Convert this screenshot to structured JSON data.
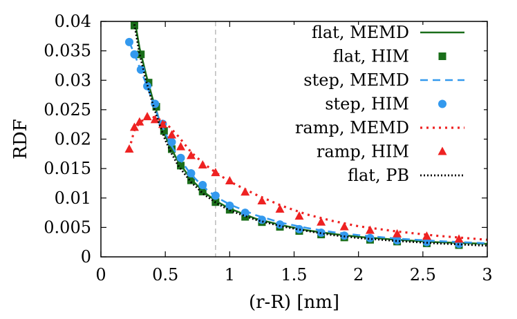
{
  "chart_data": {
    "type": "line",
    "xlabel": "(r-R) [nm]",
    "ylabel": "RDF",
    "xlim": [
      0,
      3
    ],
    "ylim": [
      0,
      0.04
    ],
    "xticks": [
      0,
      0.5,
      1,
      1.5,
      2,
      2.5,
      3
    ],
    "xtick_labels": [
      "0",
      "0.5",
      "1",
      "1.5",
      "2",
      "2.5",
      "3"
    ],
    "yticks": [
      0,
      0.005,
      0.01,
      0.015,
      0.02,
      0.025,
      0.03,
      0.035,
      0.04
    ],
    "ytick_labels": [
      "0",
      "0.005",
      "0.01",
      "0.015",
      "0.02",
      "0.025",
      "0.03",
      "0.035",
      "0.04"
    ],
    "grid": false,
    "legend_position": "top-right",
    "reference_line": {
      "x": 0.89,
      "style": "dashed",
      "color": "#bbbbbb"
    },
    "series": [
      {
        "name": "flat, MEMD",
        "kind": "line",
        "style": "solid",
        "color": "#1a6e1a",
        "x": [
          0.26,
          0.3,
          0.35,
          0.4,
          0.45,
          0.5,
          0.55,
          0.6,
          0.7,
          0.8,
          0.9,
          1.0,
          1.2,
          1.4,
          1.6,
          1.8,
          2.0,
          2.3,
          2.6,
          3.0
        ],
        "y": [
          0.0405,
          0.0355,
          0.031,
          0.027,
          0.0235,
          0.0205,
          0.0182,
          0.0162,
          0.0132,
          0.011,
          0.0094,
          0.0082,
          0.0065,
          0.0054,
          0.0045,
          0.0039,
          0.0034,
          0.0029,
          0.0025,
          0.0022
        ]
      },
      {
        "name": "flat, HIM",
        "kind": "markers",
        "marker": "square",
        "color": "#1a6e1a",
        "x": [
          0.26,
          0.31,
          0.37,
          0.43,
          0.49,
          0.55,
          0.62,
          0.7,
          0.79,
          0.89,
          1.0,
          1.12,
          1.25,
          1.39,
          1.54,
          1.71,
          1.89,
          2.09,
          2.3,
          2.53,
          2.78
        ],
        "y": [
          0.0393,
          0.0344,
          0.0296,
          0.0255,
          0.0214,
          0.0183,
          0.0155,
          0.013,
          0.0111,
          0.0093,
          0.008,
          0.0068,
          0.0059,
          0.0051,
          0.0044,
          0.0038,
          0.0033,
          0.0029,
          0.0026,
          0.0023,
          0.002
        ]
      },
      {
        "name": "step, MEMD",
        "kind": "line",
        "style": "dashed",
        "color": "#3399ee",
        "x": [
          0.22,
          0.26,
          0.3,
          0.35,
          0.4,
          0.45,
          0.5,
          0.55,
          0.6,
          0.7,
          0.8,
          0.9,
          1.0,
          1.2,
          1.4,
          1.6,
          1.8,
          2.0,
          2.3,
          2.6,
          3.0
        ],
        "y": [
          0.0365,
          0.0345,
          0.0322,
          0.0295,
          0.0265,
          0.0235,
          0.021,
          0.0188,
          0.017,
          0.014,
          0.0118,
          0.0101,
          0.0089,
          0.0071,
          0.0058,
          0.0049,
          0.0042,
          0.0037,
          0.0031,
          0.0027,
          0.0023
        ]
      },
      {
        "name": "step, HIM",
        "kind": "markers",
        "marker": "circle",
        "color": "#3399ee",
        "x": [
          0.22,
          0.26,
          0.31,
          0.36,
          0.42,
          0.48,
          0.55,
          0.62,
          0.7,
          0.79,
          0.89,
          1.0,
          1.12,
          1.25,
          1.39,
          1.54,
          1.71,
          1.89,
          2.09,
          2.3,
          2.53,
          2.78
        ],
        "y": [
          0.0365,
          0.0344,
          0.0318,
          0.029,
          0.026,
          0.0226,
          0.0195,
          0.0168,
          0.0142,
          0.0122,
          0.0104,
          0.0087,
          0.0075,
          0.0063,
          0.0055,
          0.0047,
          0.0041,
          0.0036,
          0.0032,
          0.0028,
          0.0025,
          0.0022
        ]
      },
      {
        "name": "ramp, MEMD",
        "kind": "line",
        "style": "dotted",
        "color": "#ee2222",
        "x": [
          0.22,
          0.26,
          0.3,
          0.35,
          0.4,
          0.45,
          0.5,
          0.6,
          0.7,
          0.8,
          0.9,
          1.0,
          1.2,
          1.4,
          1.6,
          1.8,
          2.0,
          2.3,
          2.6,
          3.0
        ],
        "y": [
          0.0183,
          0.0215,
          0.0228,
          0.0236,
          0.0238,
          0.0234,
          0.0228,
          0.0205,
          0.0178,
          0.0158,
          0.0142,
          0.0128,
          0.0106,
          0.0087,
          0.0072,
          0.0061,
          0.0052,
          0.0043,
          0.0036,
          0.0029
        ]
      },
      {
        "name": "ramp, HIM",
        "kind": "markers",
        "marker": "triangle",
        "color": "#ee2222",
        "x": [
          0.22,
          0.26,
          0.3,
          0.36,
          0.42,
          0.48,
          0.55,
          0.62,
          0.7,
          0.79,
          0.89,
          1.0,
          1.12,
          1.25,
          1.39,
          1.54,
          1.71,
          1.89,
          2.09,
          2.3,
          2.53,
          2.78
        ],
        "y": [
          0.0183,
          0.022,
          0.0229,
          0.0238,
          0.0233,
          0.0225,
          0.0207,
          0.0187,
          0.0172,
          0.0156,
          0.0143,
          0.0129,
          0.011,
          0.0095,
          0.0081,
          0.0069,
          0.0059,
          0.0051,
          0.0045,
          0.0039,
          0.0035,
          0.003
        ]
      },
      {
        "name": "flat, PB",
        "kind": "line",
        "style": "densely-dotted",
        "color": "#000000",
        "x": [
          0.26,
          0.3,
          0.35,
          0.4,
          0.45,
          0.5,
          0.55,
          0.6,
          0.7,
          0.8,
          0.9,
          1.0,
          1.2,
          1.4,
          1.6,
          1.8,
          2.0,
          2.3,
          2.6,
          3.0
        ],
        "y": [
          0.0395,
          0.0345,
          0.03,
          0.0262,
          0.0228,
          0.0198,
          0.0175,
          0.0155,
          0.0127,
          0.0106,
          0.0091,
          0.0079,
          0.0063,
          0.0052,
          0.0044,
          0.0037,
          0.0032,
          0.0027,
          0.0023,
          0.0019
        ]
      }
    ]
  }
}
